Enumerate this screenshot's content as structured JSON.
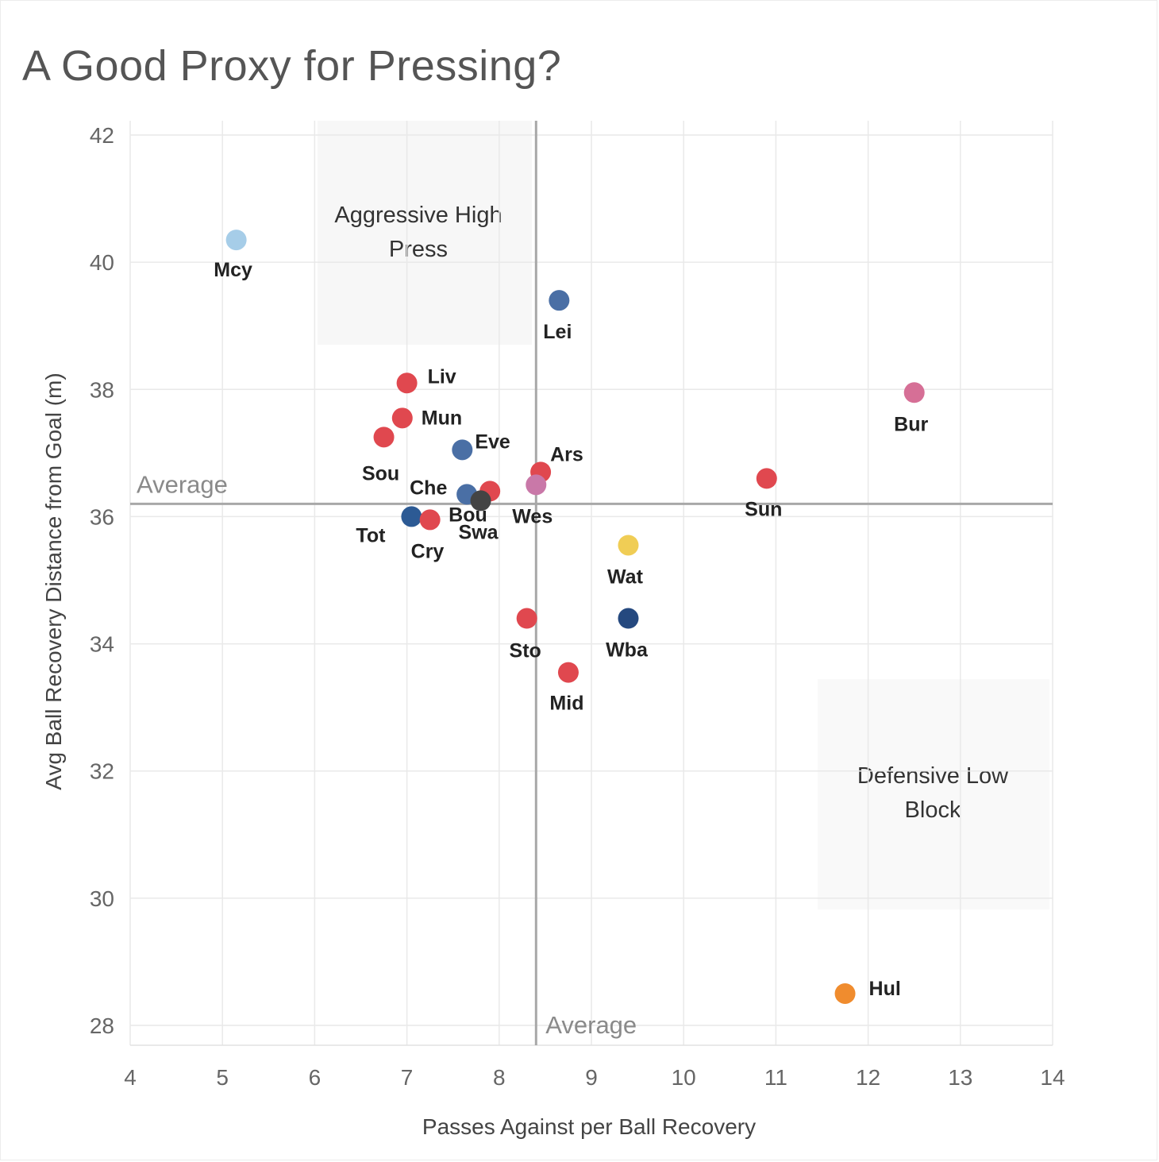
{
  "chart_data": {
    "type": "scatter",
    "title": "A Good Proxy for Pressing?",
    "xlabel": "Passes Against per Ball Recovery",
    "ylabel": "Avg Ball Recovery Distance from Goal (m)",
    "xlim": [
      4,
      14
    ],
    "ylim": [
      28,
      42
    ],
    "x_ticks": [
      "4",
      "5",
      "6",
      "7",
      "8",
      "9",
      "10",
      "11",
      "12",
      "13",
      "14"
    ],
    "y_ticks": [
      "28",
      "30",
      "32",
      "34",
      "36",
      "38",
      "40",
      "42"
    ],
    "grid": true,
    "average": {
      "x": 8.4,
      "y": 36.2,
      "x_label": "Average",
      "y_label": "Average"
    },
    "zones": [
      {
        "lines": [
          "Aggressive High",
          "Press"
        ],
        "quadrant": "top-left"
      },
      {
        "lines": [
          "Defensive Low",
          "Block"
        ],
        "quadrant": "bottom-right"
      }
    ],
    "points": [
      {
        "label": "Mcy",
        "x": 5.15,
        "y": 40.35,
        "color": "#a6cde8"
      },
      {
        "label": "Lei",
        "x": 8.65,
        "y": 39.4,
        "color": "#4a6fa5"
      },
      {
        "label": "Liv",
        "x": 7.0,
        "y": 38.1,
        "color": "#e0484f"
      },
      {
        "label": "Mun",
        "x": 6.95,
        "y": 37.55,
        "color": "#e0484f"
      },
      {
        "label": "Sou",
        "x": 6.75,
        "y": 37.25,
        "color": "#e0484f"
      },
      {
        "label": "Eve",
        "x": 7.6,
        "y": 37.05,
        "color": "#4a6fa5"
      },
      {
        "label": "Bou",
        "x": 7.9,
        "y": 36.4,
        "color": "#e0484f"
      },
      {
        "label": "Ars",
        "x": 8.45,
        "y": 36.7,
        "color": "#e0484f"
      },
      {
        "label": "Wes",
        "x": 8.4,
        "y": 36.5,
        "color": "#c978a8"
      },
      {
        "label": "Che",
        "x": 7.65,
        "y": 36.35,
        "color": "#4a6fa5"
      },
      {
        "label": "Swa",
        "x": 7.8,
        "y": 36.25,
        "color": "#444444"
      },
      {
        "label": "Tot",
        "x": 7.05,
        "y": 36.0,
        "color": "#2c5a94"
      },
      {
        "label": "Cry",
        "x": 7.25,
        "y": 35.95,
        "color": "#e0484f"
      },
      {
        "label": "Bur",
        "x": 12.5,
        "y": 37.95,
        "color": "#d66f96"
      },
      {
        "label": "Sun",
        "x": 10.9,
        "y": 36.6,
        "color": "#e0484f"
      },
      {
        "label": "Wat",
        "x": 9.4,
        "y": 35.55,
        "color": "#f0cd55"
      },
      {
        "label": "Sto",
        "x": 8.3,
        "y": 34.4,
        "color": "#e0484f"
      },
      {
        "label": "Wba",
        "x": 9.4,
        "y": 34.4,
        "color": "#25497f"
      },
      {
        "label": "Mid",
        "x": 8.75,
        "y": 33.55,
        "color": "#e0484f"
      },
      {
        "label": "Hul",
        "x": 11.75,
        "y": 28.5,
        "color": "#f08c2e"
      }
    ]
  }
}
